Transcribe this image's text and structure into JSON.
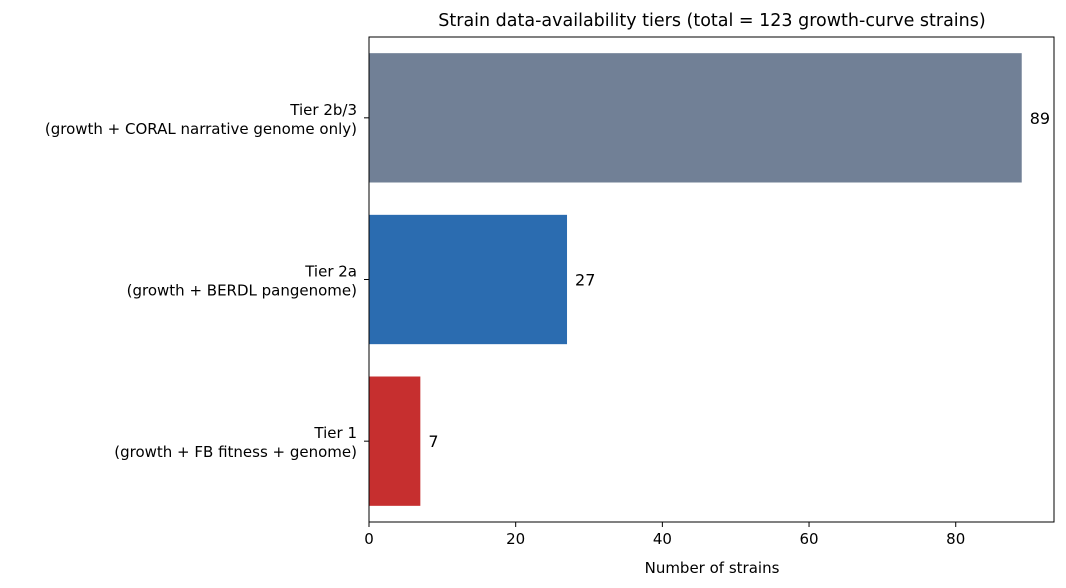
{
  "chart_data": {
    "type": "bar",
    "orientation": "horizontal",
    "title": "Strain data-availability tiers (total = 123 growth-curve strains)",
    "xlabel": "Number of strains",
    "ylabel": "",
    "xlim": [
      0,
      93.4
    ],
    "xticks": [
      0,
      20,
      40,
      60,
      80
    ],
    "grid": false,
    "categories": [
      {
        "line1": "Tier 1",
        "line2": "(growth + FB fitness + genome)"
      },
      {
        "line1": "Tier 2a",
        "line2": "(growth + BERDL pangenome)"
      },
      {
        "line1": "Tier 2b/3",
        "line2": "(growth + CORAL narrative genome only)"
      }
    ],
    "values": [
      7,
      27,
      89
    ],
    "value_labels": [
      "7",
      "27",
      "89"
    ],
    "colors": [
      "#c62f2f",
      "#2b6cb0",
      "#718096"
    ]
  }
}
